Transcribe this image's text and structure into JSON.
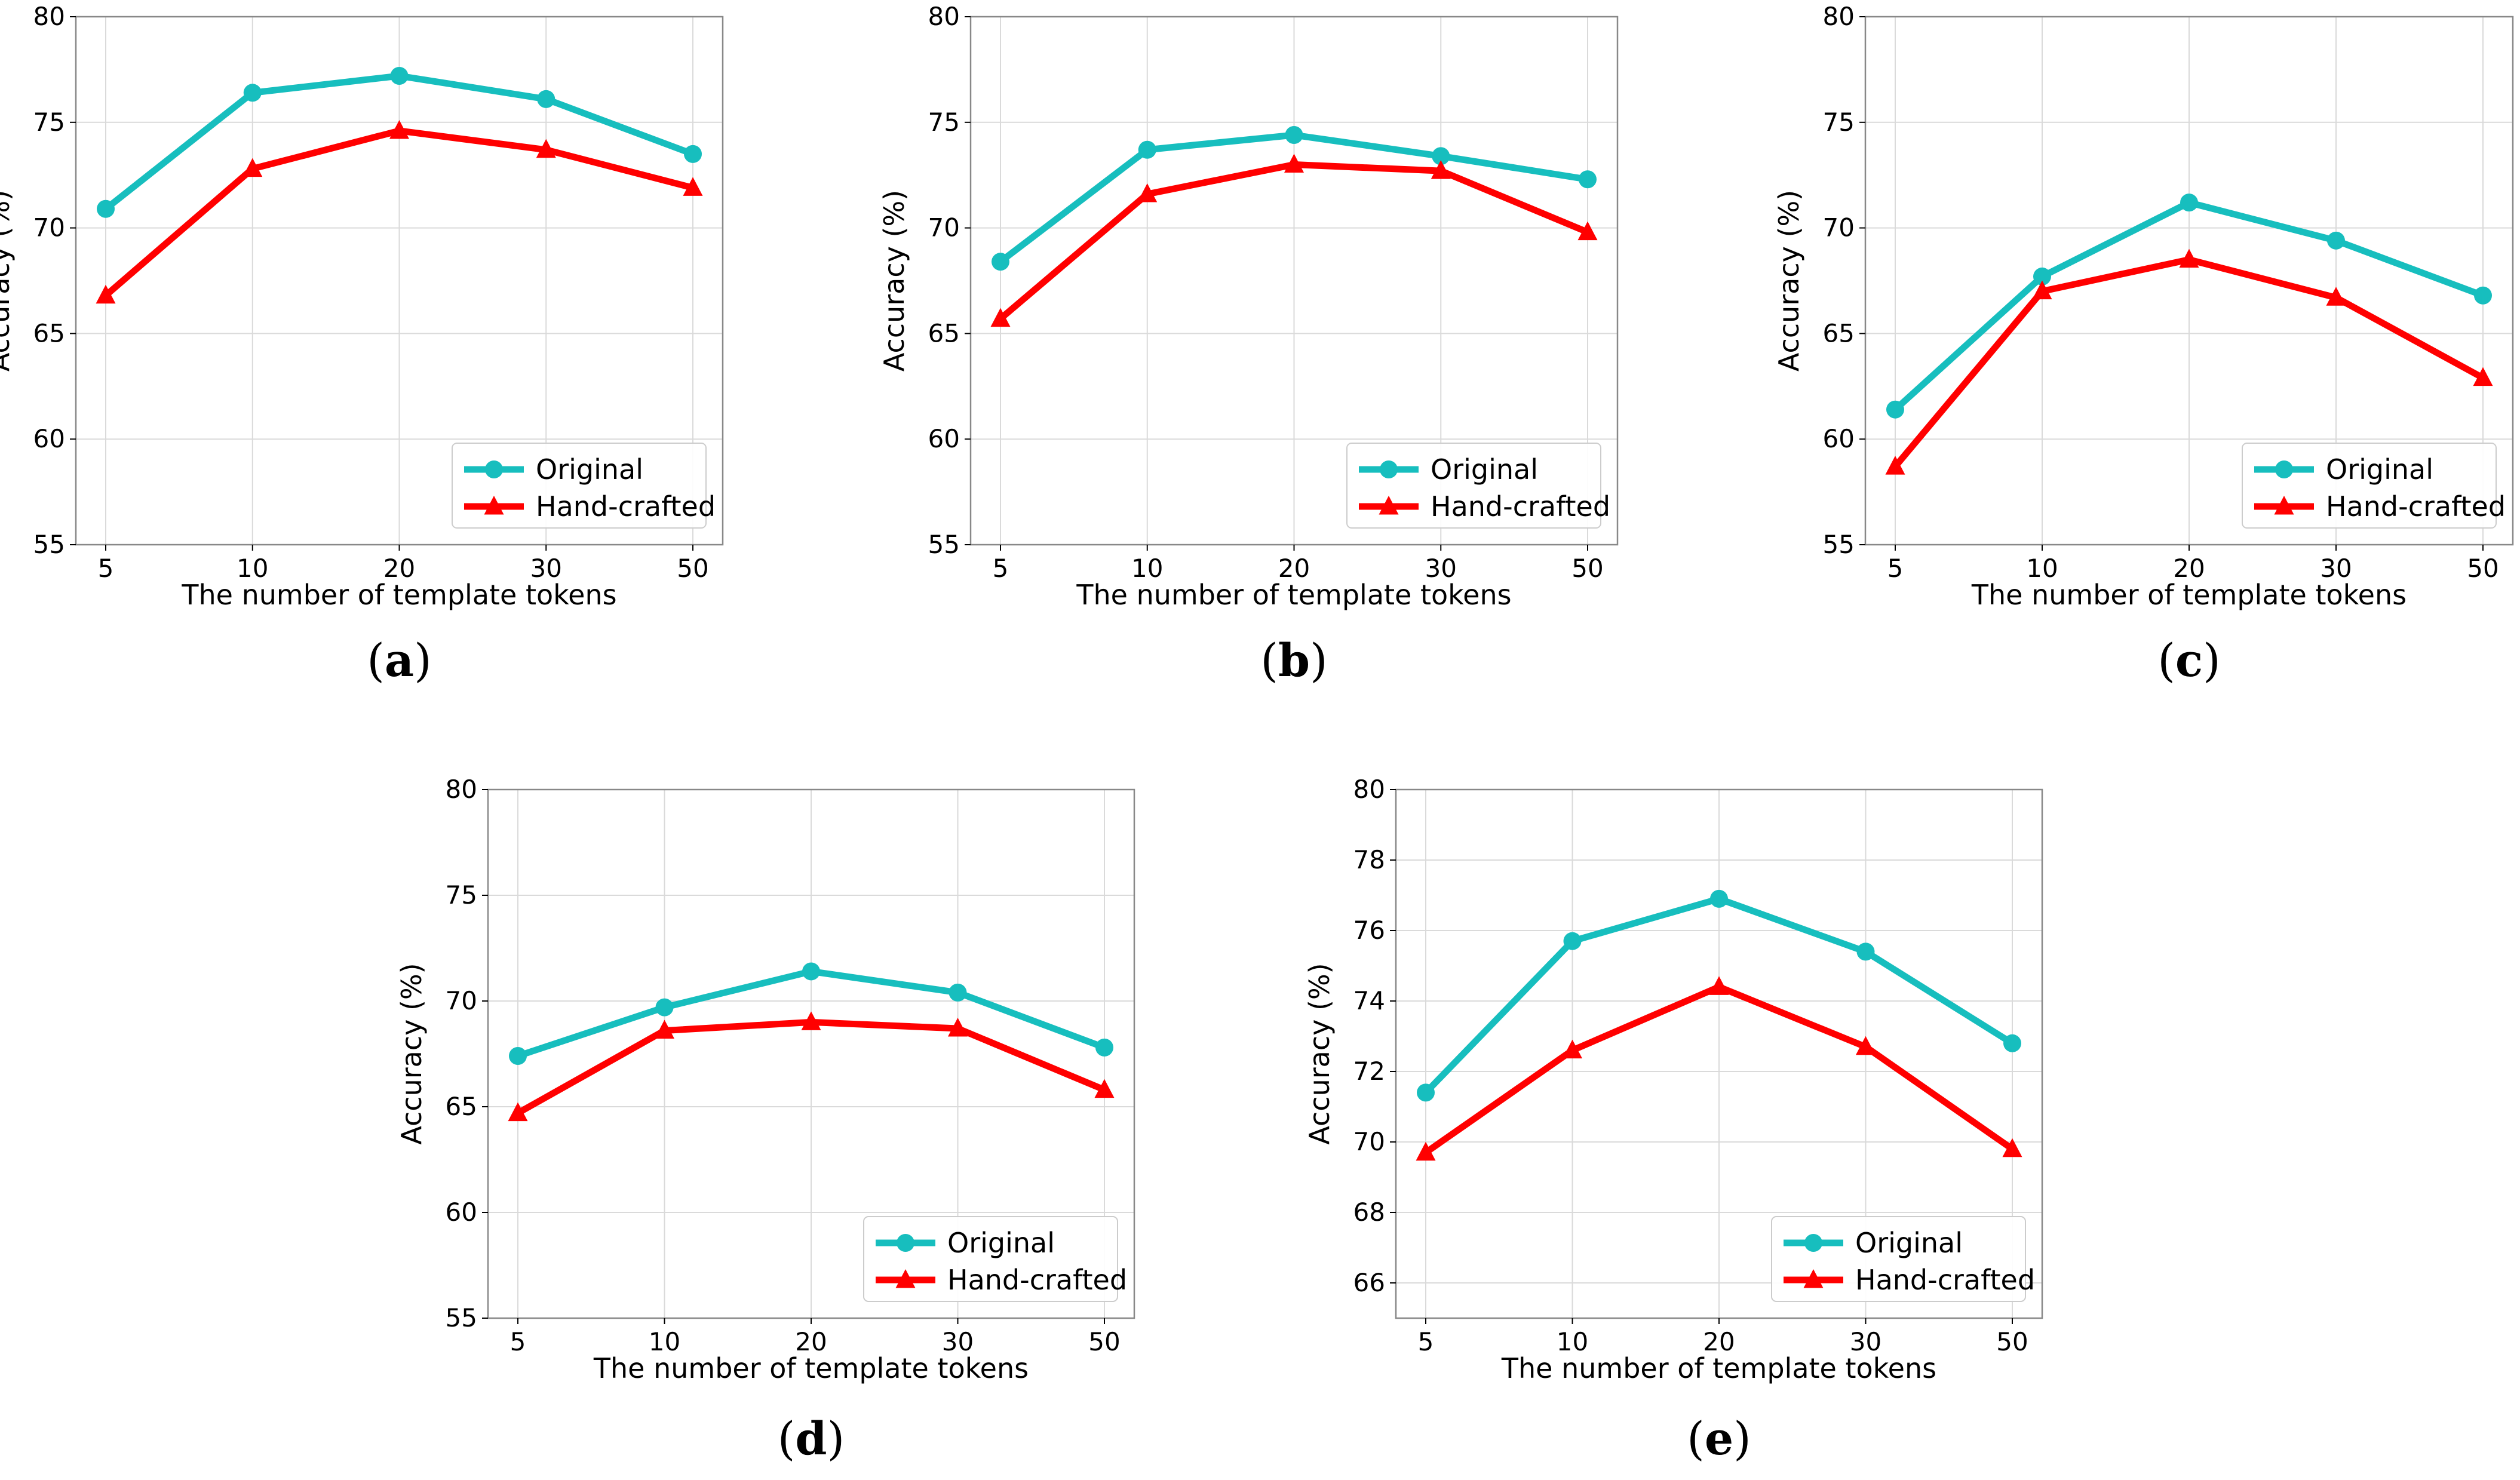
{
  "colors": {
    "original": "#17BEBE",
    "handcrafted": "#FF0000",
    "grid": "#DADADA",
    "frame": "#888888"
  },
  "chart_data": [
    {
      "id": "a",
      "type": "line",
      "caption_letter": "a",
      "caption_open": "(",
      "caption_close": ")",
      "xlabel": "The number of template tokens",
      "ylabel": "Accuracy (%)",
      "categories": [
        "5",
        "10",
        "20",
        "30",
        "50"
      ],
      "ylim": [
        55,
        80
      ],
      "yticks": [
        55,
        60,
        65,
        70,
        75,
        80
      ],
      "series": [
        {
          "name": "Original",
          "marker": "circle",
          "values": [
            70.9,
            76.4,
            77.2,
            76.1,
            73.5
          ]
        },
        {
          "name": "Hand-crafted",
          "marker": "triangle",
          "values": [
            66.8,
            72.8,
            74.6,
            73.7,
            71.9
          ]
        }
      ],
      "legend": "lower-right"
    },
    {
      "id": "b",
      "type": "line",
      "caption_letter": "b",
      "caption_open": "(",
      "caption_close": ")",
      "xlabel": "The number of template tokens",
      "ylabel": "Accuracy (%)",
      "categories": [
        "5",
        "10",
        "20",
        "30",
        "50"
      ],
      "ylim": [
        55,
        80
      ],
      "yticks": [
        55,
        60,
        65,
        70,
        75,
        80
      ],
      "series": [
        {
          "name": "Original",
          "marker": "circle",
          "values": [
            68.4,
            73.7,
            74.4,
            73.4,
            72.3
          ]
        },
        {
          "name": "Hand-crafted",
          "marker": "triangle",
          "values": [
            65.7,
            71.6,
            73.0,
            72.7,
            69.8
          ]
        }
      ],
      "legend": "lower-right"
    },
    {
      "id": "c",
      "type": "line",
      "caption_letter": "c",
      "caption_open": "(",
      "caption_close": ")",
      "xlabel": "The number of template tokens",
      "ylabel": "Accuracy (%)",
      "categories": [
        "5",
        "10",
        "20",
        "30",
        "50"
      ],
      "ylim": [
        55,
        80
      ],
      "yticks": [
        55,
        60,
        65,
        70,
        75,
        80
      ],
      "series": [
        {
          "name": "Original",
          "marker": "circle",
          "values": [
            61.4,
            67.7,
            71.2,
            69.4,
            66.8
          ]
        },
        {
          "name": "Hand-crafted",
          "marker": "triangle",
          "values": [
            58.7,
            67.0,
            68.5,
            66.7,
            62.9
          ]
        }
      ],
      "legend": "lower-right"
    },
    {
      "id": "d",
      "type": "line",
      "caption_letter": "d",
      "caption_open": "(",
      "caption_close": ")",
      "xlabel": "The number of template tokens",
      "ylabel": "Accuracy (%)",
      "categories": [
        "5",
        "10",
        "20",
        "30",
        "50"
      ],
      "ylim": [
        55,
        80
      ],
      "yticks": [
        55,
        60,
        65,
        70,
        75,
        80
      ],
      "series": [
        {
          "name": "Original",
          "marker": "circle",
          "values": [
            67.4,
            69.7,
            71.4,
            70.4,
            67.8
          ]
        },
        {
          "name": "Hand-crafted",
          "marker": "triangle",
          "values": [
            64.7,
            68.6,
            69.0,
            68.7,
            65.8
          ]
        }
      ],
      "legend": "lower-right"
    },
    {
      "id": "e",
      "type": "line",
      "caption_letter": "e",
      "caption_open": "(",
      "caption_close": ")",
      "xlabel": "The number of template tokens",
      "ylabel": "Accuracy (%)",
      "categories": [
        "5",
        "10",
        "20",
        "30",
        "50"
      ],
      "ylim": [
        65,
        80
      ],
      "yticks": [
        66,
        68,
        70,
        72,
        74,
        76,
        78,
        80
      ],
      "series": [
        {
          "name": "Original",
          "marker": "circle",
          "values": [
            71.4,
            75.7,
            76.9,
            75.4,
            72.8
          ]
        },
        {
          "name": "Hand-crafted",
          "marker": "triangle",
          "values": [
            69.7,
            72.6,
            74.4,
            72.7,
            69.8
          ]
        }
      ],
      "legend": "lower-right"
    }
  ]
}
